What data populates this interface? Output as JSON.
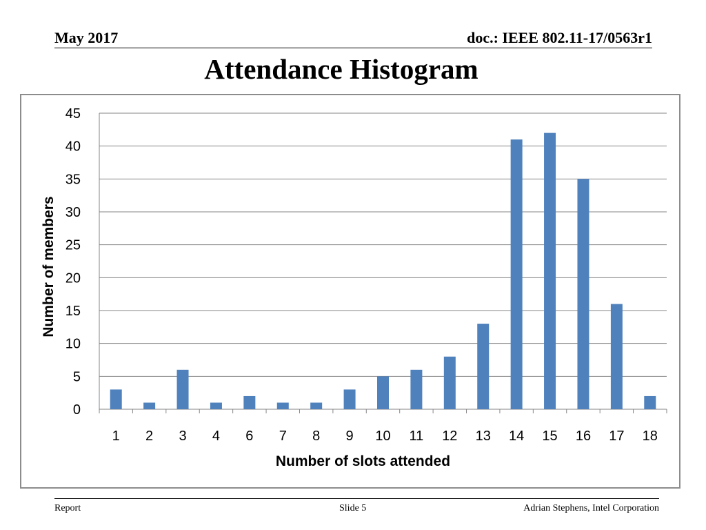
{
  "header": {
    "date": "May 2017",
    "doc_id": "doc.: IEEE 802.11-17/0563r1"
  },
  "slide_title": "Attendance Histogram",
  "footer": {
    "left": "Report",
    "center": "Slide 5",
    "right": "Adrian Stephens, Intel Corporation"
  },
  "chart_data": {
    "type": "bar",
    "categories": [
      "1",
      "2",
      "3",
      "4",
      "6",
      "7",
      "8",
      "9",
      "10",
      "11",
      "12",
      "13",
      "14",
      "15",
      "16",
      "17",
      "18"
    ],
    "values": [
      3,
      1,
      6,
      1,
      2,
      1,
      1,
      3,
      5,
      6,
      8,
      13,
      41,
      42,
      35,
      16,
      2
    ],
    "xlabel": "Number of slots attended",
    "ylabel": "Number of members",
    "ylim": [
      0,
      45
    ],
    "yticks": [
      0,
      5,
      10,
      15,
      20,
      25,
      30,
      35,
      40,
      45
    ],
    "grid": true,
    "legend": "none",
    "bar_color": "#4F81BD",
    "grid_color": "#868686"
  }
}
